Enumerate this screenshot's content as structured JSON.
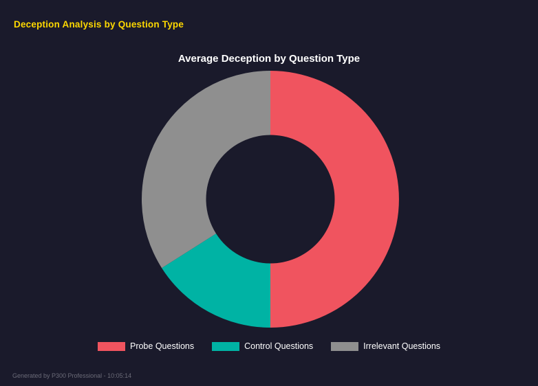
{
  "header": {
    "title": "Deception Analysis by Question Type"
  },
  "chart_data": {
    "type": "pie",
    "variant": "donut",
    "title": "Average Deception by Question Type",
    "categories": [
      "Probe Questions",
      "Control Questions",
      "Irrelevant Questions"
    ],
    "values": [
      50,
      16,
      34
    ],
    "unit": "percent-of-total",
    "colors": [
      "#f0545f",
      "#00b3a4",
      "#8f8f8f"
    ],
    "legend_position": "bottom",
    "start_angle_deg": 0,
    "direction": "clockwise",
    "inner_radius_ratio": 0.5
  },
  "footer": {
    "text": "Generated by P300 Professional - 10:05:14"
  },
  "theme": {
    "background": "#1a1a2b",
    "heading_color": "#ffd900",
    "title_color": "#ffffff",
    "legend_text_color": "#ffffff",
    "footer_color": "#6b6b78"
  }
}
